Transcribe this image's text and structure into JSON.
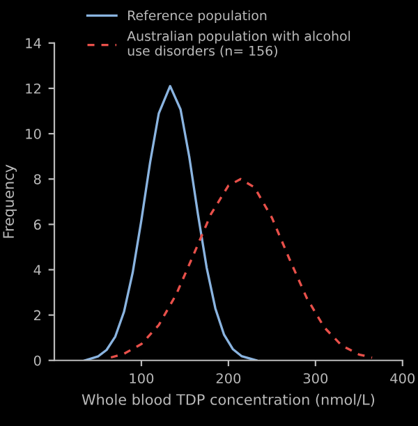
{
  "chart_data": {
    "type": "line",
    "xlabel": "Whole blood TDP concentration (nmol/L)",
    "ylabel": "Frequency",
    "xlim": [
      0,
      400
    ],
    "xticks": [
      100,
      200,
      300,
      400
    ],
    "ylim": [
      0,
      14
    ],
    "yticks": [
      0,
      2,
      4,
      6,
      8,
      10,
      12,
      14
    ],
    "grid": false,
    "legend": "top",
    "marker": "none",
    "series": [
      {
        "name": "Reference population",
        "color": "#8ab4e0",
        "line_style": "solid",
        "x": [
          35,
          50,
          60,
          70,
          80,
          90,
          100,
          110,
          120,
          133,
          145,
          155,
          165,
          175,
          185,
          195,
          205,
          215,
          232
        ],
        "values": [
          0,
          0.17,
          0.46,
          1.05,
          2.14,
          3.87,
          6.19,
          8.73,
          10.9,
          12.1,
          11.07,
          8.98,
          6.44,
          4.09,
          2.29,
          1.13,
          0.5,
          0.19,
          0
        ]
      },
      {
        "name": "Australian population with alcohol\nuse disorders (n= 156)",
        "color": "#e8504a",
        "line_style": "dashed",
        "x": [
          65,
          80,
          100,
          120,
          140,
          160,
          180,
          200,
          214,
          230,
          250,
          270,
          290,
          310,
          330,
          350,
          365
        ],
        "values": [
          0.13,
          0.29,
          0.72,
          1.56,
          2.91,
          4.67,
          6.46,
          7.71,
          8,
          7.63,
          6.29,
          4.48,
          2.75,
          1.46,
          0.66,
          0.26,
          0.12
        ]
      }
    ]
  }
}
